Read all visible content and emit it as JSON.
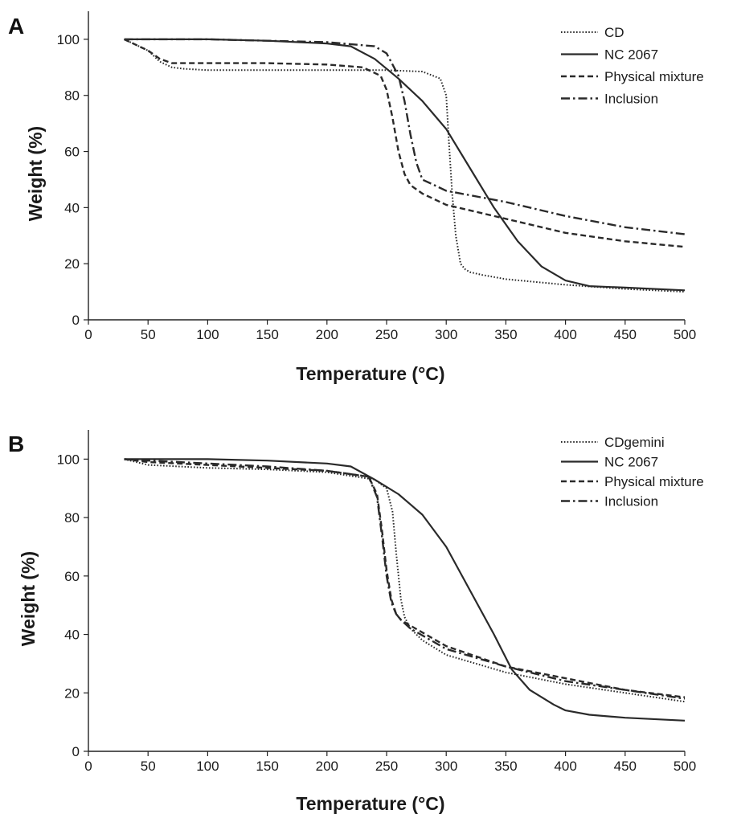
{
  "chart_data": [
    {
      "type": "line",
      "panel_label": "A",
      "xlabel": "Temperature (°C)",
      "ylabel": "Weight (%)",
      "xlim": [
        0,
        500
      ],
      "ylim": [
        0,
        110
      ],
      "xticks": [
        0,
        50,
        100,
        150,
        200,
        250,
        300,
        350,
        400,
        450,
        500
      ],
      "yticks": [
        0,
        20,
        40,
        60,
        80,
        100
      ],
      "grid": false,
      "legend_position": "top-right",
      "series": [
        {
          "name": "CD",
          "style": "dotted",
          "x": [
            30,
            50,
            60,
            70,
            80,
            100,
            150,
            200,
            250,
            280,
            295,
            300,
            302,
            305,
            308,
            312,
            316,
            320,
            330,
            350,
            400,
            450,
            500
          ],
          "y": [
            100,
            96,
            92,
            90,
            89.5,
            89,
            89,
            89,
            89,
            88.5,
            86,
            80,
            65,
            45,
            30,
            20,
            18,
            17,
            16,
            14.5,
            12.5,
            11,
            10
          ]
        },
        {
          "name": "NC 2067",
          "style": "solid",
          "x": [
            30,
            100,
            150,
            200,
            220,
            240,
            260,
            280,
            300,
            320,
            340,
            360,
            380,
            400,
            420,
            450,
            500
          ],
          "y": [
            100,
            100,
            99.5,
            98.5,
            97.5,
            93,
            86,
            78,
            68,
            54,
            40,
            28,
            19,
            14,
            12,
            11.5,
            10.5
          ]
        },
        {
          "name": "Physical mixture",
          "style": "dashed",
          "x": [
            30,
            50,
            60,
            70,
            80,
            100,
            150,
            200,
            230,
            245,
            250,
            255,
            260,
            265,
            270,
            280,
            300,
            350,
            400,
            450,
            500
          ],
          "y": [
            100,
            96,
            93,
            91.5,
            91.5,
            91.5,
            91.5,
            91,
            90,
            87,
            82,
            72,
            60,
            52,
            48,
            45,
            41,
            36,
            31,
            28,
            26
          ]
        },
        {
          "name": "Inclusion",
          "style": "dashdot",
          "x": [
            30,
            100,
            150,
            200,
            240,
            250,
            260,
            265,
            270,
            275,
            280,
            290,
            300,
            350,
            400,
            450,
            500
          ],
          "y": [
            100,
            100,
            99.5,
            99,
            97.5,
            95,
            87,
            78,
            66,
            56,
            50,
            48,
            46,
            42,
            37,
            33,
            30.5
          ]
        }
      ]
    },
    {
      "type": "line",
      "panel_label": "B",
      "xlabel": "Temperature (°C)",
      "ylabel": "Weight (%)",
      "xlim": [
        0,
        500
      ],
      "ylim": [
        0,
        110
      ],
      "xticks": [
        0,
        50,
        100,
        150,
        200,
        250,
        300,
        350,
        400,
        450,
        500
      ],
      "yticks": [
        0,
        20,
        40,
        60,
        80,
        100
      ],
      "grid": false,
      "legend_position": "top-right",
      "series": [
        {
          "name": "CDgemini",
          "style": "dotted",
          "x": [
            30,
            50,
            100,
            150,
            200,
            240,
            250,
            255,
            258,
            262,
            265,
            270,
            280,
            300,
            350,
            400,
            450,
            500
          ],
          "y": [
            100,
            98,
            97,
            96.5,
            95.5,
            93,
            90,
            82,
            68,
            52,
            46,
            42,
            38,
            33,
            27,
            23,
            20,
            17
          ]
        },
        {
          "name": "NC 2067",
          "style": "solid",
          "x": [
            30,
            100,
            150,
            200,
            220,
            240,
            260,
            280,
            300,
            320,
            340,
            355,
            370,
            390,
            400,
            420,
            450,
            500
          ],
          "y": [
            100,
            100,
            99.5,
            98.5,
            97.5,
            93,
            88,
            81,
            70,
            55,
            40,
            28,
            21,
            16,
            14,
            12.5,
            11.5,
            10.5
          ]
        },
        {
          "name": "Physical mixture",
          "style": "dashed",
          "x": [
            30,
            50,
            100,
            150,
            200,
            235,
            242,
            246,
            250,
            254,
            258,
            262,
            270,
            300,
            350,
            400,
            450,
            500
          ],
          "y": [
            100,
            99,
            98,
            97,
            96,
            94,
            88,
            76,
            62,
            52,
            47,
            45,
            43,
            36,
            29,
            25,
            21,
            18.5
          ]
        },
        {
          "name": "Inclusion",
          "style": "dashdot",
          "x": [
            30,
            50,
            100,
            150,
            200,
            235,
            242,
            246,
            250,
            254,
            258,
            262,
            270,
            300,
            350,
            400,
            450,
            500
          ],
          "y": [
            100,
            99.5,
            98.5,
            97.5,
            96,
            94,
            87,
            74,
            60,
            51,
            47,
            45,
            42,
            35,
            29,
            24,
            21,
            18
          ]
        }
      ]
    }
  ]
}
